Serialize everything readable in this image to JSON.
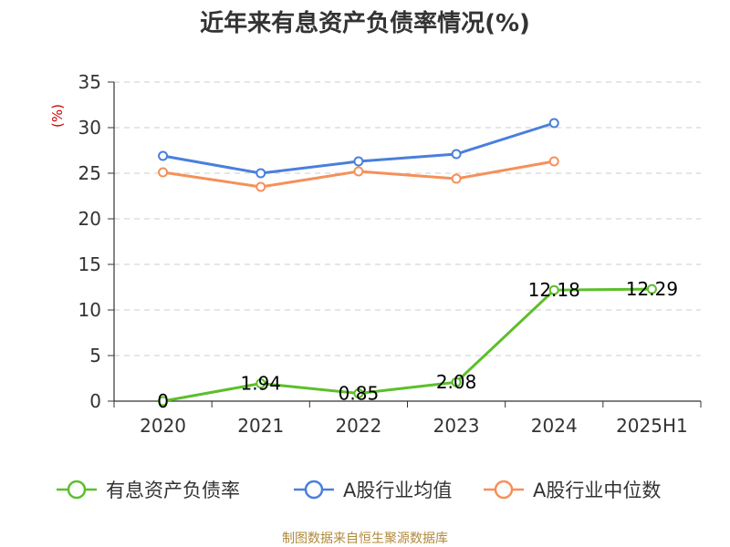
{
  "title": "近年来有息资产负债率情况(%)",
  "unit_label": "(%)",
  "source": "制图数据来自恒生聚源数据库",
  "chart_data": {
    "type": "line",
    "categories": [
      "2020",
      "2021",
      "2022",
      "2023",
      "2024",
      "2025H1"
    ],
    "ylim": [
      0,
      35
    ],
    "yticks": [
      0,
      5,
      10,
      15,
      20,
      25,
      30,
      35
    ],
    "grid": true,
    "legend_position": "bottom",
    "series": [
      {
        "name": "有息资产负债率",
        "color": "#5cbf2a",
        "values": [
          0,
          1.94,
          0.85,
          2.08,
          12.18,
          12.29
        ],
        "data_labels": [
          "0",
          "1.94",
          "0.85",
          "2.08",
          "12.18",
          "12.29"
        ]
      },
      {
        "name": "A股行业均值",
        "color": "#4a7fdc",
        "values": [
          26.9,
          25.0,
          26.3,
          27.1,
          30.5,
          null
        ]
      },
      {
        "name": "A股行业中位数",
        "color": "#f5905a",
        "values": [
          25.1,
          23.5,
          25.2,
          24.4,
          26.3,
          null
        ]
      }
    ]
  }
}
